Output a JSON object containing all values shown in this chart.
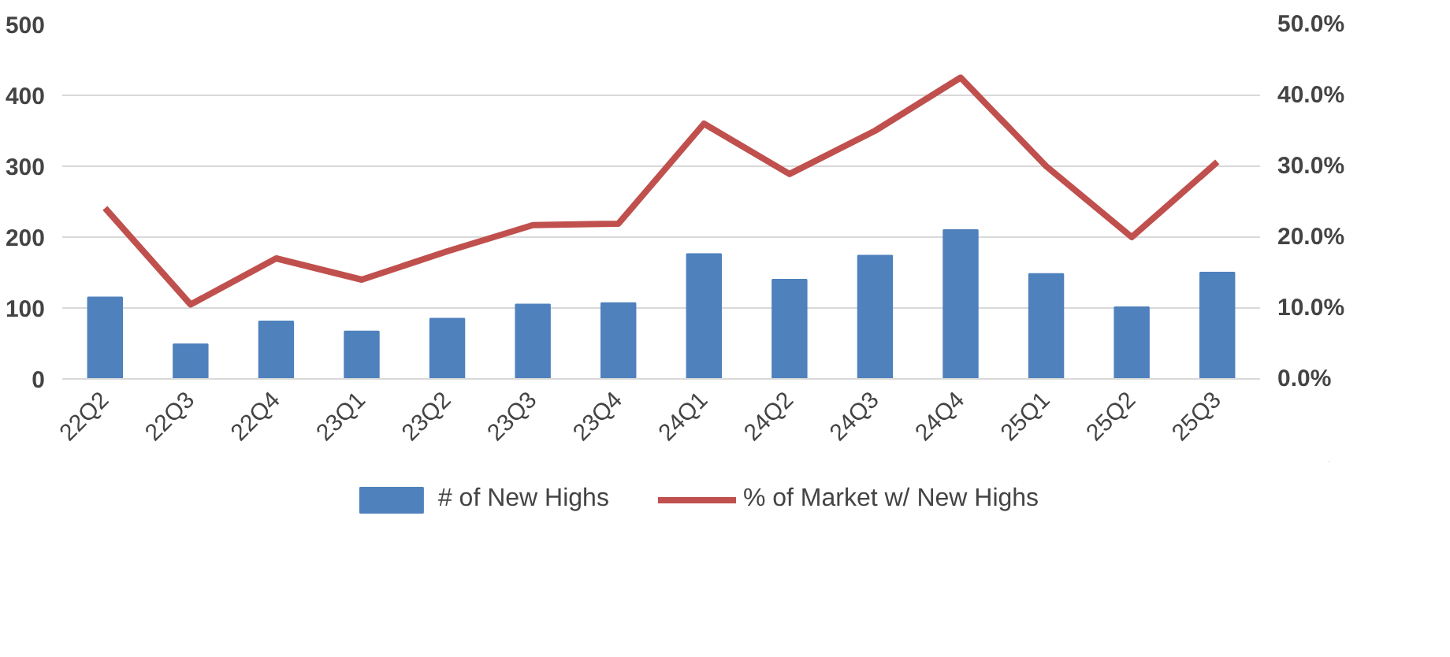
{
  "chart_data": {
    "type": "bar",
    "categories": [
      "22Q2",
      "22Q3",
      "22Q4",
      "23Q1",
      "23Q2",
      "23Q3",
      "23Q4",
      "24Q1",
      "24Q2",
      "24Q3",
      "24Q4",
      "25Q1",
      "25Q2",
      "25Q3"
    ],
    "series": [
      {
        "name": "# of New Highs",
        "color": "#4f81bd",
        "values": [
          115,
          49,
          81,
          67,
          85,
          105,
          107,
          176,
          140,
          174,
          210,
          148,
          101,
          150
        ]
      },
      {
        "name": "% of Market w/ New Highs",
        "color": "#c0504d",
        "type": "line",
        "axis": "y2",
        "values": [
          24.1,
          10.5,
          17,
          14,
          18,
          21.7,
          21.9,
          36,
          28.9,
          35,
          42.5,
          30,
          20,
          30.6
        ]
      }
    ],
    "ylim": [
      0,
      500
    ],
    "yticks": [
      0,
      100,
      200,
      300,
      400,
      500
    ],
    "y2lim": [
      0,
      50
    ],
    "y2ticks": [
      {
        "value": 0,
        "label": "0.0%"
      },
      {
        "value": 10,
        "label": "10.0%"
      },
      {
        "value": 20,
        "label": "20.0%"
      },
      {
        "value": 30,
        "label": "30.0%"
      },
      {
        "value": 40,
        "label": "40.0%"
      },
      {
        "value": 50,
        "label": "50.0%"
      }
    ],
    "grid": "y",
    "legend": "bottom",
    "marker": "none",
    "line_style": "solid"
  }
}
